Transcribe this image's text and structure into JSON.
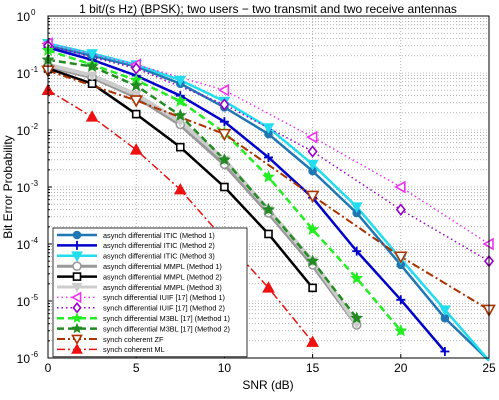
{
  "chart_data": {
    "type": "line",
    "title": "1 bit/(s Hz) (BPSK); two users − two transmit and two receive antennas",
    "xlabel": "SNR (dB)",
    "ylabel": "Bit Error Probability",
    "xlim": [
      0,
      25
    ],
    "ylim": [
      1e-06,
      1
    ],
    "y_scale": "log",
    "grid": true,
    "legend_position": "bottom-left",
    "x_ticks": [
      "0",
      "5",
      "10",
      "15",
      "20",
      "25"
    ],
    "y_ticks": [
      {
        "base": "10",
        "exp": "0"
      },
      {
        "base": "10",
        "exp": "-1"
      },
      {
        "base": "10",
        "exp": "-2"
      },
      {
        "base": "10",
        "exp": "-3"
      },
      {
        "base": "10",
        "exp": "-4"
      },
      {
        "base": "10",
        "exp": "-5"
      },
      {
        "base": "10",
        "exp": "-6"
      }
    ],
    "series": [
      {
        "name": "asynch differential ITIC (Method 1)",
        "color": "#1f77b4",
        "dash": "solid",
        "width": 2.5,
        "marker": "circle",
        "filled": true,
        "msize": 3.5,
        "x": [
          0,
          2.5,
          5,
          7.5,
          10,
          12.5,
          15,
          17.5,
          20,
          22.5,
          25
        ],
        "y": [
          0.3,
          0.2,
          0.13,
          0.065,
          0.025,
          0.0085,
          0.0019,
          0.00035,
          4.3e-05,
          5e-06,
          9e-07
        ]
      },
      {
        "name": "asynch differential ITIC (Method 2)",
        "color": "#0000cc",
        "dash": "solid",
        "width": 2.5,
        "marker": "plus",
        "filled": false,
        "msize": 4.5,
        "x": [
          0,
          2.5,
          5,
          7.5,
          10,
          12.5,
          15,
          17.5,
          20,
          22.5
        ],
        "y": [
          0.28,
          0.17,
          0.09,
          0.04,
          0.014,
          0.0033,
          0.00065,
          7.5e-05,
          1.05e-05,
          1.3e-06
        ]
      },
      {
        "name": "asynch differential ITIC (Method 3)",
        "color": "#22ddee",
        "dash": "solid",
        "width": 2.5,
        "marker": "triangle-down",
        "filled": true,
        "msize": 4.5,
        "x": [
          0,
          2.5,
          5,
          7.5,
          10,
          12.5,
          15,
          17.5,
          20,
          22.5,
          25
        ],
        "y": [
          0.33,
          0.22,
          0.14,
          0.075,
          0.032,
          0.011,
          0.0025,
          0.00045,
          5.5e-05,
          7e-06,
          9e-07
        ]
      },
      {
        "name": "asynch differential MMPL (Method 1)",
        "color": "#999999",
        "dash": "solid",
        "width": 4,
        "marker": "circle",
        "filled": false,
        "msize": 4,
        "x": [
          0,
          2.5,
          5,
          7.5,
          10,
          12.5,
          15,
          17.5
        ],
        "y": [
          0.13,
          0.085,
          0.038,
          0.0125,
          0.0025,
          0.00035,
          4.3e-05,
          3.8e-06
        ]
      },
      {
        "name": "asynch differential MMPL (Method 2)",
        "color": "#000000",
        "dash": "solid",
        "width": 2.5,
        "marker": "square",
        "filled": false,
        "msize": 3.5,
        "x": [
          0,
          2.5,
          5,
          7.5,
          10,
          12.5,
          15
        ],
        "y": [
          0.12,
          0.065,
          0.019,
          0.005,
          0.001,
          0.00015,
          1.7e-05
        ]
      },
      {
        "name": "asynch differential MMPL (Method 3)",
        "color": "#cccccc",
        "dash": "solid",
        "width": 4,
        "marker": "triangle-down",
        "filled": true,
        "msize": 4,
        "x": [
          0,
          2.5,
          5,
          7.5,
          10,
          12.5,
          15,
          17.5
        ],
        "y": [
          0.14,
          0.09,
          0.042,
          0.014,
          0.003,
          0.0004,
          5e-05,
          4e-06
        ]
      },
      {
        "name": "synch differential IUIF [17] (Method 1)",
        "color": "#ee33ee",
        "dash": "dot",
        "width": 1.5,
        "marker": "triangle-left",
        "filled": false,
        "msize": 5,
        "x": [
          0,
          5,
          10,
          15,
          20,
          25
        ],
        "y": [
          0.33,
          0.14,
          0.05,
          0.0075,
          0.001,
          0.0001
        ]
      },
      {
        "name": "synch differential IUIF [17] (Method 2)",
        "color": "#9900cc",
        "dash": "dot",
        "width": 1.5,
        "marker": "diamond",
        "filled": false,
        "msize": 5,
        "x": [
          0,
          5,
          10,
          15,
          20,
          25
        ],
        "y": [
          0.3,
          0.12,
          0.028,
          0.0042,
          0.0004,
          5e-05
        ]
      },
      {
        "name": "synch differential M3BL [17] (Method 1)",
        "color": "#22ee22",
        "dash": "dash",
        "width": 2.5,
        "marker": "star",
        "filled": true,
        "msize": 5.5,
        "x": [
          0,
          2.5,
          5,
          7.5,
          10,
          12.5,
          15,
          17.5,
          20
        ],
        "y": [
          0.25,
          0.14,
          0.075,
          0.032,
          0.009,
          0.0015,
          0.00018,
          2.5e-05,
          3e-06
        ]
      },
      {
        "name": "synch differential M3BL [17] (Method 2)",
        "color": "#228b22",
        "dash": "dash",
        "width": 2.5,
        "marker": "star",
        "filled": true,
        "msize": 5.5,
        "x": [
          0,
          2.5,
          5,
          7.5,
          10,
          12.5,
          15,
          17.5
        ],
        "y": [
          0.17,
          0.13,
          0.06,
          0.018,
          0.003,
          0.0004,
          5e-05,
          5e-06
        ]
      },
      {
        "name": "synch coherent ZF",
        "color": "#aa3300",
        "dash": "dashdot",
        "width": 2,
        "marker": "triangle-down",
        "filled": false,
        "msize": 5.5,
        "x": [
          0,
          5,
          10,
          15,
          20,
          25
        ],
        "y": [
          0.11,
          0.033,
          0.0085,
          0.0007,
          6e-05,
          7e-06
        ]
      },
      {
        "name": "synch coherent ML",
        "color": "#ee1111",
        "dash": "dashdot",
        "width": 1.5,
        "marker": "triangle-up",
        "filled": true,
        "msize": 5,
        "x": [
          0,
          2.5,
          5,
          7.5,
          10,
          12.5,
          15
        ],
        "y": [
          0.05,
          0.017,
          0.0045,
          0.0009,
          0.00012,
          1.7e-05,
          1.9e-06
        ]
      }
    ]
  }
}
